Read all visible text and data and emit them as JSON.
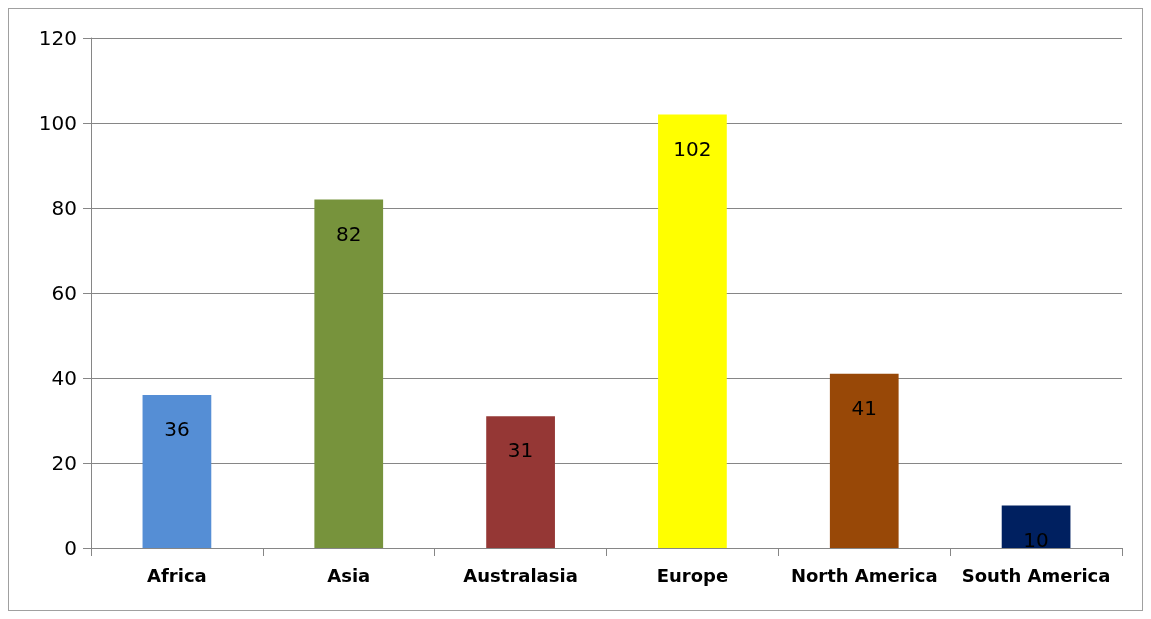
{
  "chart_data": {
    "type": "bar",
    "categories": [
      "Africa",
      "Asia",
      "Australasia",
      "Europe",
      "North America",
      "South America"
    ],
    "values": [
      36,
      82,
      31,
      102,
      41,
      10
    ],
    "colors": [
      "#558ed5",
      "#77933c",
      "#953735",
      "#ffff00",
      "#984807",
      "#002060"
    ],
    "ylim": [
      0,
      120
    ],
    "yticks": [
      0,
      20,
      40,
      60,
      80,
      100,
      120
    ],
    "grid": "y",
    "data_labels": true
  }
}
